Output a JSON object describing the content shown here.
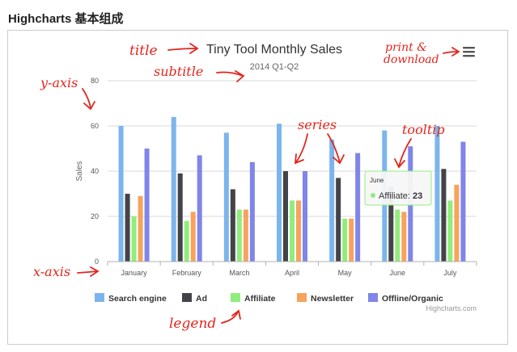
{
  "page": {
    "heading": "Highcharts 基本组成"
  },
  "colors": {
    "grid": "#d8d8d8",
    "axis_text": "#555555",
    "title": "#333333",
    "annotation": "#e2261d",
    "tooltip_border": "#90ed7d"
  },
  "chart_data": {
    "type": "bar",
    "title": "Tiny Tool Monthly Sales",
    "subtitle": "2014 Q1-Q2",
    "xlabel": "",
    "ylabel": "Sales",
    "ylim": [
      0,
      80
    ],
    "yticks": [
      0,
      20,
      40,
      60,
      80
    ],
    "grid": true,
    "legend_position": "bottom-center",
    "categories": [
      "January",
      "February",
      "March",
      "April",
      "May",
      "June",
      "July"
    ],
    "series": [
      {
        "name": "Search engine",
        "color": "#7cb5ec",
        "values": [
          60,
          64,
          57,
          61,
          54,
          58,
          60
        ]
      },
      {
        "name": "Ad",
        "color": "#434348",
        "values": [
          30,
          39,
          32,
          40,
          37,
          33,
          41
        ]
      },
      {
        "name": "Affiliate",
        "color": "#90ed7d",
        "values": [
          20,
          18,
          23,
          27,
          19,
          23,
          27
        ]
      },
      {
        "name": "Newsletter",
        "color": "#f7a35c",
        "values": [
          29,
          22,
          23,
          27,
          19,
          22,
          34
        ]
      },
      {
        "name": "Offline/Organic",
        "color": "#8085e9",
        "values": [
          50,
          47,
          44,
          40,
          48,
          51,
          53
        ]
      }
    ],
    "tooltip": {
      "title": "June",
      "series": "Affiliate",
      "value": "23"
    },
    "credits": "Highcharts.com",
    "menu_icon": "hamburger-menu-icon"
  },
  "annotations": {
    "title": "title",
    "subtitle": "subtitle",
    "yaxis": "y-axis",
    "xaxis": "x-axis",
    "series": "series",
    "tooltip": "tooltip",
    "legend": "legend",
    "print_line1": "print &",
    "print_line2": "download"
  }
}
